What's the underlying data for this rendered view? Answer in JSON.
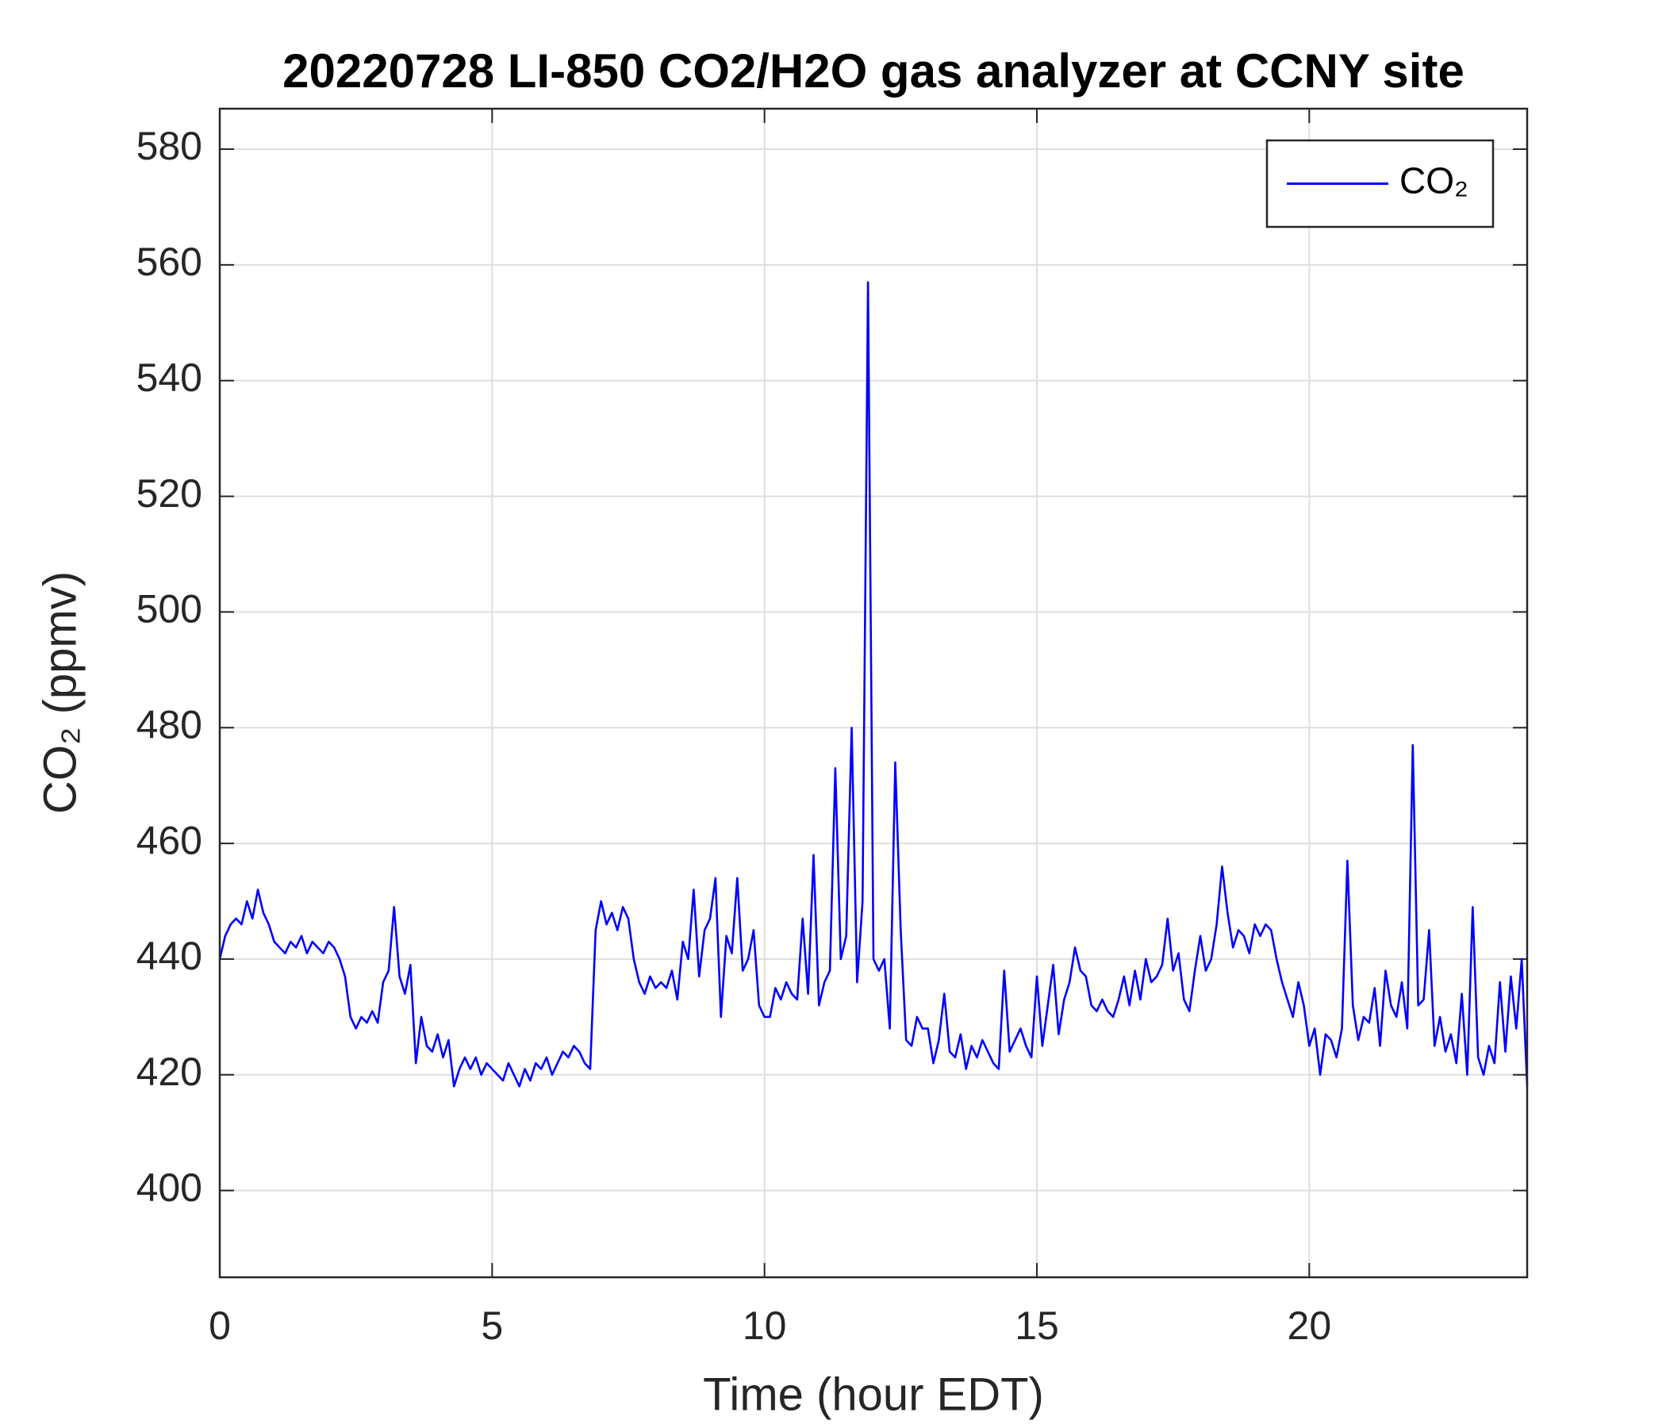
{
  "chart_data": {
    "type": "line",
    "title": "20220728 LI-850 CO2/H2O gas analyzer at CCNY site",
    "xlabel": "Time (hour EDT)",
    "ylabel": "CO₂ (ppmv)",
    "xlim": [
      0,
      24
    ],
    "ylim": [
      385,
      587
    ],
    "xticks": [
      0,
      5,
      10,
      15,
      20
    ],
    "yticks": [
      400,
      420,
      440,
      460,
      480,
      500,
      520,
      540,
      560,
      580
    ],
    "grid": true,
    "legend": "upper right",
    "x": [
      0,
      0.1,
      0.2,
      0.3,
      0.4,
      0.5,
      0.6,
      0.7,
      0.8,
      0.9,
      1,
      1.1,
      1.2,
      1.3,
      1.4,
      1.5,
      1.6,
      1.7,
      1.8,
      1.9,
      2,
      2.1,
      2.2,
      2.3,
      2.4,
      2.5,
      2.6,
      2.7,
      2.8,
      2.9,
      3,
      3.1,
      3.2,
      3.3,
      3.4,
      3.5,
      3.6,
      3.7,
      3.8,
      3.9,
      4,
      4.1,
      4.2,
      4.3,
      4.4,
      4.5,
      4.6,
      4.7,
      4.8,
      4.9,
      5,
      5.1,
      5.2,
      5.3,
      5.4,
      5.5,
      5.6,
      5.7,
      5.8,
      5.9,
      6,
      6.1,
      6.2,
      6.3,
      6.4,
      6.5,
      6.6,
      6.7,
      6.8,
      6.9,
      7,
      7.1,
      7.2,
      7.3,
      7.4,
      7.5,
      7.6,
      7.7,
      7.8,
      7.9,
      8,
      8.1,
      8.2,
      8.3,
      8.4,
      8.5,
      8.6,
      8.7,
      8.8,
      8.9,
      9,
      9.1,
      9.2,
      9.3,
      9.4,
      9.5,
      9.6,
      9.7,
      9.8,
      9.9,
      10,
      10.1,
      10.2,
      10.3,
      10.4,
      10.5,
      10.6,
      10.7,
      10.8,
      10.9,
      11,
      11.1,
      11.2,
      11.3,
      11.4,
      11.5,
      11.6,
      11.7,
      11.8,
      11.9,
      12,
      12.1,
      12.2,
      12.3,
      12.4,
      12.5,
      12.6,
      12.7,
      12.8,
      12.9,
      13,
      13.1,
      13.2,
      13.3,
      13.4,
      13.5,
      13.6,
      13.7,
      13.8,
      13.9,
      14,
      14.1,
      14.2,
      14.3,
      14.4,
      14.5,
      14.6,
      14.7,
      14.8,
      14.9,
      15,
      15.1,
      15.2,
      15.3,
      15.4,
      15.5,
      15.6,
      15.7,
      15.8,
      15.9,
      16,
      16.1,
      16.2,
      16.3,
      16.4,
      16.5,
      16.6,
      16.7,
      16.8,
      16.9,
      17,
      17.1,
      17.2,
      17.3,
      17.4,
      17.5,
      17.6,
      17.7,
      17.8,
      17.9,
      18,
      18.1,
      18.2,
      18.3,
      18.4,
      18.5,
      18.6,
      18.7,
      18.8,
      18.9,
      19,
      19.1,
      19.2,
      19.3,
      19.4,
      19.5,
      19.6,
      19.7,
      19.8,
      19.9,
      20,
      20.1,
      20.2,
      20.3,
      20.4,
      20.5,
      20.6,
      20.7,
      20.8,
      20.9,
      21,
      21.1,
      21.2,
      21.3,
      21.4,
      21.5,
      21.6,
      21.7,
      21.8,
      21.9,
      22,
      22.1,
      22.2,
      22.3,
      22.4,
      22.5,
      22.6,
      22.7,
      22.8,
      22.9,
      23,
      23.1,
      23.2,
      23.3,
      23.4,
      23.5,
      23.6,
      23.7,
      23.8,
      23.9,
      24
    ],
    "series": [
      {
        "name": "CO₂",
        "color": "#0000ff",
        "values": [
          440,
          444,
          446,
          447,
          446,
          450,
          447,
          452,
          448,
          446,
          443,
          442,
          441,
          443,
          442,
          444,
          441,
          443,
          442,
          441,
          443,
          442,
          440,
          437,
          430,
          428,
          430,
          429,
          431,
          429,
          436,
          438,
          449,
          437,
          434,
          439,
          422,
          430,
          425,
          424,
          427,
          423,
          426,
          418,
          421,
          423,
          421,
          423,
          420,
          422,
          421,
          420,
          419,
          422,
          420,
          418,
          421,
          419,
          422,
          421,
          423,
          420,
          422,
          424,
          423,
          425,
          424,
          422,
          421,
          445,
          450,
          446,
          448,
          445,
          449,
          447,
          440,
          436,
          434,
          437,
          435,
          436,
          435,
          438,
          433,
          443,
          440,
          452,
          437,
          445,
          447,
          454,
          430,
          444,
          441,
          454,
          438,
          440,
          445,
          432,
          430,
          430,
          435,
          433,
          436,
          434,
          433,
          447,
          434,
          458,
          432,
          436,
          438,
          473,
          440,
          444,
          480,
          436,
          450,
          557,
          440,
          438,
          440,
          428,
          474,
          445,
          426,
          425,
          430,
          428,
          428,
          422,
          426,
          434,
          424,
          423,
          427,
          421,
          425,
          423,
          426,
          424,
          422,
          421,
          438,
          424,
          426,
          428,
          425,
          423,
          437,
          425,
          432,
          439,
          427,
          433,
          436,
          442,
          438,
          437,
          432,
          431,
          433,
          431,
          430,
          433,
          437,
          432,
          438,
          433,
          440,
          436,
          437,
          439,
          447,
          438,
          441,
          433,
          431,
          438,
          444,
          438,
          440,
          446,
          456,
          448,
          442,
          445,
          444,
          441,
          446,
          444,
          446,
          445,
          440,
          436,
          433,
          430,
          436,
          432,
          425,
          428,
          420,
          427,
          426,
          423,
          428,
          457,
          432,
          426,
          430,
          429,
          435,
          425,
          438,
          432,
          430,
          436,
          428,
          477,
          432,
          433,
          445,
          425,
          430,
          424,
          427,
          422,
          434,
          420,
          449,
          423,
          420,
          425,
          422,
          436,
          424,
          437,
          428,
          440,
          418
        ]
      }
    ]
  }
}
